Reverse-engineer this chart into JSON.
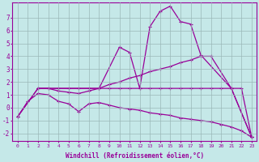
{
  "xlabel": "Windchill (Refroidissement éolien,°C)",
  "background_color": "#c5e8e8",
  "grid_color": "#9ab8b8",
  "line_color": "#990099",
  "xlim": [
    -0.5,
    23.5
  ],
  "ylim": [
    -2.6,
    8.2
  ],
  "xticks": [
    0,
    1,
    2,
    3,
    4,
    5,
    6,
    7,
    8,
    9,
    10,
    11,
    12,
    13,
    14,
    15,
    16,
    17,
    18,
    19,
    20,
    21,
    22,
    23
  ],
  "yticks": [
    -2,
    -1,
    0,
    1,
    2,
    3,
    4,
    5,
    6,
    7
  ],
  "series_A": {
    "x": [
      0,
      1,
      2,
      3,
      4,
      5,
      6,
      7,
      8,
      9,
      10,
      11,
      12,
      13,
      14,
      15,
      16,
      17,
      18,
      19,
      20,
      21,
      22,
      23
    ],
    "y": [
      -0.7,
      0.5,
      1.1,
      1.0,
      0.5,
      0.3,
      -0.3,
      0.3,
      0.4,
      0.2,
      0.0,
      -0.1,
      -0.2,
      -0.4,
      -0.5,
      -0.6,
      -0.8,
      -0.9,
      -1.0,
      -1.1,
      -1.3,
      -1.5,
      -1.8,
      -2.3
    ]
  },
  "series_B": {
    "x": [
      0,
      2,
      3,
      4,
      5,
      6,
      7,
      8,
      9,
      10,
      11,
      12,
      13,
      14,
      15,
      16,
      17,
      18,
      19,
      21,
      23
    ],
    "y": [
      -0.7,
      1.5,
      1.5,
      1.3,
      1.2,
      1.1,
      1.3,
      1.5,
      1.8,
      2.0,
      2.3,
      2.5,
      2.8,
      3.0,
      3.2,
      3.5,
      3.7,
      4.0,
      4.0,
      1.5,
      -2.3
    ]
  },
  "series_C": {
    "x": [
      2,
      3,
      4,
      5,
      6,
      7,
      8,
      9,
      10,
      11,
      12,
      13,
      14,
      15,
      16,
      17,
      18,
      19,
      20,
      21,
      22,
      23
    ],
    "y": [
      1.5,
      1.5,
      1.5,
      1.5,
      1.5,
      1.5,
      1.5,
      1.5,
      1.5,
      1.5,
      1.5,
      1.5,
      1.5,
      1.5,
      1.5,
      1.5,
      1.5,
      1.5,
      1.5,
      1.5,
      1.5,
      -2.3
    ]
  },
  "series_D": {
    "x": [
      0,
      2,
      8,
      10,
      11,
      12,
      13,
      14,
      15,
      16,
      17,
      18,
      21,
      23
    ],
    "y": [
      -0.7,
      1.5,
      1.5,
      4.7,
      4.3,
      1.5,
      6.3,
      7.5,
      7.9,
      6.7,
      6.5,
      4.1,
      1.5,
      -2.3
    ]
  }
}
